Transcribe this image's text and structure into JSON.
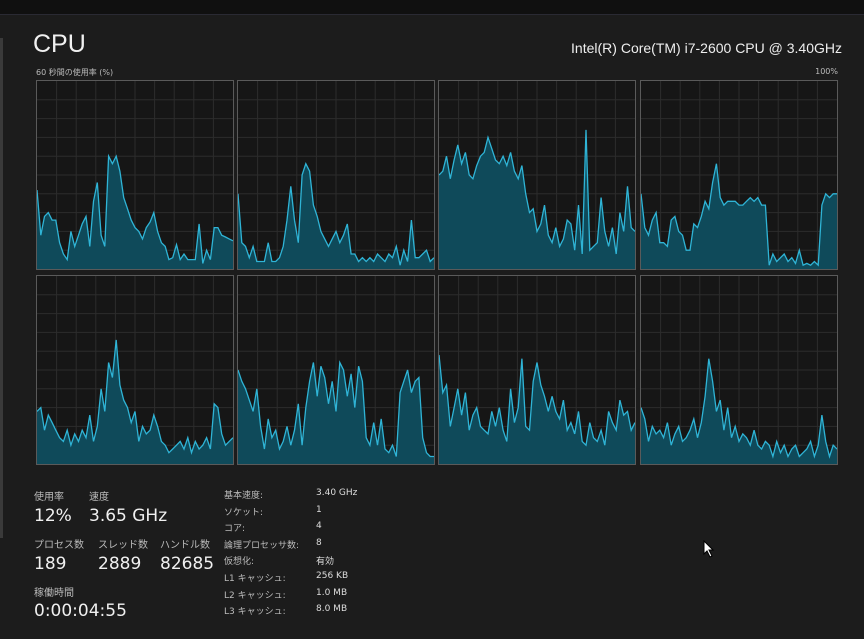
{
  "header": {
    "title": "CPU",
    "cpu_name": "Intel(R) Core(TM) i7-2600 CPU @ 3.40GHz",
    "graph_label": "60 秒間の使用率 (%)",
    "graph_max": "100%"
  },
  "colors": {
    "line": "#2fb4d6",
    "fill": "#0f4a5a",
    "grid": "#2c2c2c",
    "border": "#5a5a5a"
  },
  "cores": [
    [
      42,
      18,
      28,
      30,
      26,
      26,
      14,
      8,
      5,
      20,
      12,
      18,
      24,
      28,
      12,
      36,
      46,
      18,
      12,
      60,
      56,
      60,
      52,
      38,
      32,
      26,
      22,
      20,
      16,
      22,
      25,
      30,
      20,
      14,
      12,
      5,
      6,
      13,
      5,
      8,
      5,
      5,
      5,
      24,
      3,
      10,
      5,
      22,
      22,
      18,
      17,
      16,
      15
    ],
    [
      40,
      14,
      12,
      6,
      12,
      4,
      4,
      4,
      14,
      4,
      4,
      6,
      12,
      26,
      44,
      26,
      14,
      50,
      56,
      52,
      34,
      28,
      20,
      16,
      12,
      16,
      20,
      14,
      18,
      24,
      8,
      8,
      4,
      6,
      4,
      6,
      4,
      8,
      6,
      4,
      8,
      6,
      12,
      2,
      10,
      4,
      26,
      6,
      6,
      8,
      10,
      4,
      6
    ],
    [
      50,
      52,
      60,
      48,
      58,
      66,
      56,
      62,
      50,
      48,
      55,
      60,
      62,
      70,
      64,
      58,
      56,
      60,
      55,
      62,
      52,
      48,
      55,
      40,
      30,
      32,
      20,
      24,
      34,
      18,
      14,
      22,
      12,
      16,
      26,
      24,
      10,
      34,
      8,
      74,
      10,
      12,
      14,
      38,
      20,
      12,
      22,
      8,
      30,
      20,
      44,
      22,
      20
    ],
    [
      40,
      22,
      18,
      26,
      30,
      14,
      14,
      12,
      26,
      28,
      20,
      18,
      10,
      10,
      24,
      22,
      28,
      36,
      32,
      46,
      56,
      38,
      34,
      36,
      36,
      36,
      34,
      34,
      36,
      38,
      36,
      38,
      34,
      34,
      2,
      8,
      4,
      6,
      8,
      4,
      6,
      3,
      10,
      2,
      3,
      2,
      4,
      2,
      34,
      40,
      38,
      40,
      40
    ],
    [
      28,
      30,
      18,
      26,
      22,
      18,
      14,
      12,
      18,
      10,
      16,
      12,
      18,
      14,
      26,
      12,
      20,
      40,
      28,
      54,
      46,
      66,
      42,
      34,
      30,
      22,
      28,
      12,
      20,
      16,
      18,
      26,
      20,
      12,
      10,
      6,
      8,
      10,
      12,
      8,
      14,
      6,
      12,
      8,
      10,
      14,
      8,
      32,
      30,
      16,
      10,
      12,
      14
    ],
    [
      50,
      44,
      40,
      34,
      28,
      40,
      20,
      8,
      24,
      14,
      18,
      8,
      12,
      20,
      10,
      18,
      32,
      10,
      30,
      44,
      54,
      36,
      52,
      46,
      32,
      44,
      28,
      54,
      50,
      36,
      48,
      30,
      52,
      44,
      14,
      10,
      22,
      10,
      24,
      8,
      6,
      10,
      4,
      38,
      44,
      50,
      38,
      44,
      46,
      14,
      6,
      4,
      4
    ],
    [
      58,
      38,
      42,
      20,
      30,
      40,
      26,
      38,
      18,
      26,
      30,
      20,
      18,
      16,
      28,
      20,
      30,
      18,
      12,
      40,
      22,
      30,
      56,
      20,
      18,
      44,
      54,
      42,
      36,
      28,
      36,
      28,
      24,
      34,
      18,
      22,
      16,
      28,
      12,
      10,
      22,
      14,
      12,
      18,
      10,
      28,
      22,
      18,
      34,
      26,
      28,
      18,
      22
    ],
    [
      30,
      24,
      12,
      20,
      16,
      18,
      14,
      22,
      10,
      16,
      20,
      12,
      14,
      18,
      24,
      14,
      22,
      36,
      56,
      44,
      28,
      34,
      18,
      30,
      14,
      20,
      12,
      16,
      14,
      10,
      18,
      10,
      8,
      12,
      10,
      4,
      12,
      6,
      10,
      4,
      8,
      10,
      4,
      6,
      8,
      12,
      4,
      10,
      26,
      12,
      4,
      10,
      8
    ]
  ],
  "stats": {
    "usage_label": "使用率",
    "usage": "12%",
    "speed_label": "速度",
    "speed": "3.65 GHz",
    "processes_label": "プロセス数",
    "processes": "189",
    "threads_label": "スレッド数",
    "threads": "2889",
    "handles_label": "ハンドル数",
    "handles": "82685",
    "uptime_label": "稼働時間",
    "uptime": "0:00:04:55"
  },
  "specs": [
    {
      "k": "基本速度:",
      "v": "3.40 GHz"
    },
    {
      "k": "ソケット:",
      "v": "1"
    },
    {
      "k": "コア:",
      "v": "4"
    },
    {
      "k": "論理プロセッサ数:",
      "v": "8"
    },
    {
      "k": "仮想化:",
      "v": "有効"
    },
    {
      "k": "L1 キャッシュ:",
      "v": "256 KB"
    },
    {
      "k": "L2 キャッシュ:",
      "v": "1.0 MB"
    },
    {
      "k": "L3 キャッシュ:",
      "v": "8.0 MB"
    }
  ]
}
